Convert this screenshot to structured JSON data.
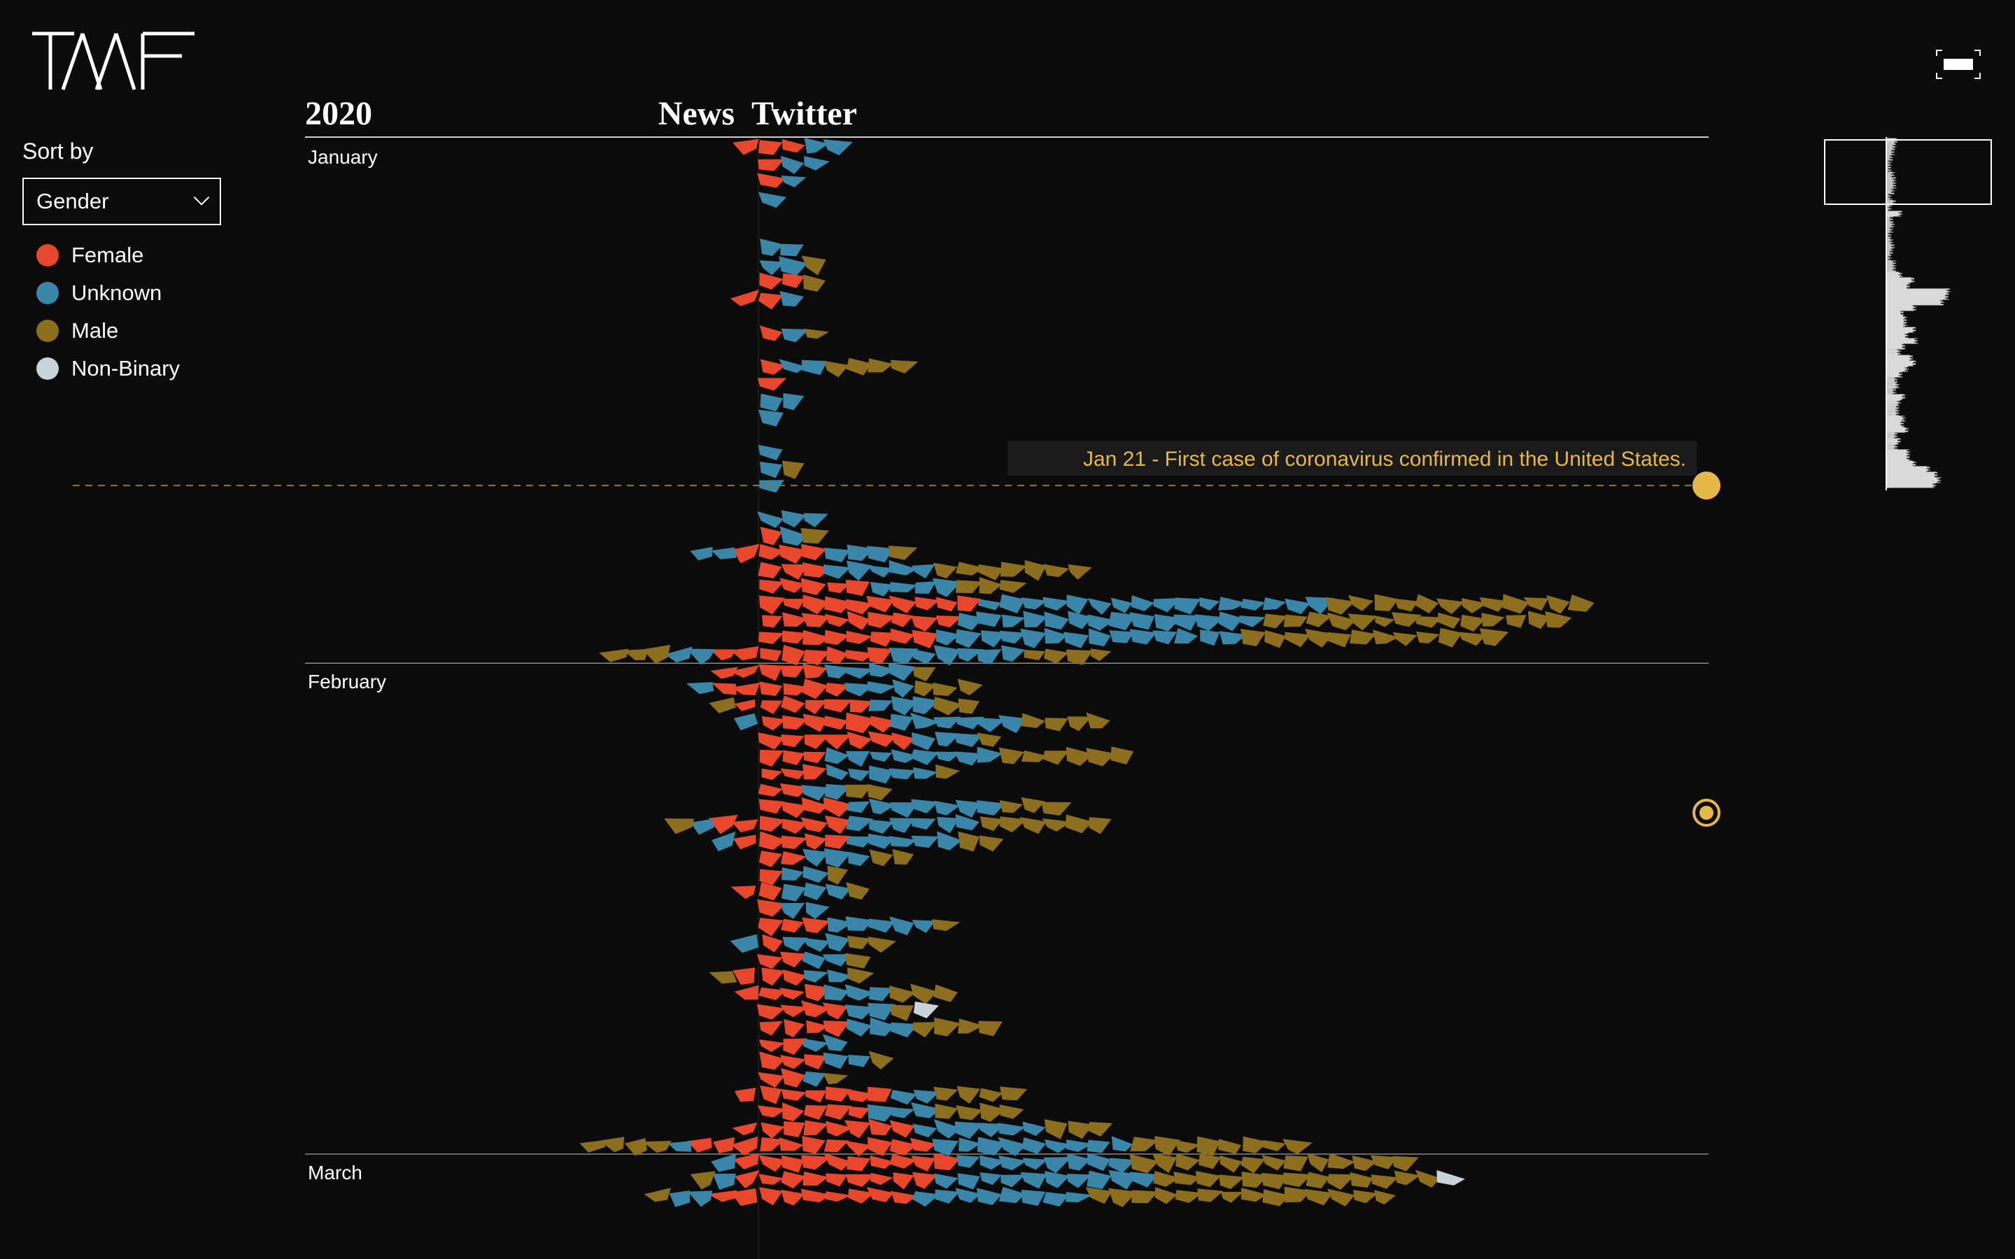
{
  "brand": {
    "logo_text": "TAAF"
  },
  "controls": {
    "sort_label": "Sort by",
    "sort_selected": "Gender"
  },
  "legend": [
    {
      "label": "Female",
      "color": "#e8472c"
    },
    {
      "label": "Unknown",
      "color": "#3a86a8"
    },
    {
      "label": "Male",
      "color": "#8c6e1e"
    },
    {
      "label": "Non-Binary",
      "color": "#c9d3da"
    }
  ],
  "icons": {
    "fullscreen": "fullscreen-exit-icon",
    "event_marker": "circle-marker-icon",
    "event_marker_selected": "ring-marker-icon"
  },
  "chart_data": {
    "type": "stream-timeline",
    "title": "2020",
    "column_headers": [
      "News",
      "Twitter"
    ],
    "months": [
      "January",
      "February",
      "March"
    ],
    "categories": [
      "Female",
      "Unknown",
      "Male",
      "Non-Binary"
    ],
    "colors": [
      "#e8472c",
      "#3a86a8",
      "#8c6e1e",
      "#c9d3da"
    ],
    "annotations": [
      {
        "date": "Jan 21",
        "text": "Jan 21 - First case of coronavirus confirmed in the United States.",
        "color": "#e6b84a"
      }
    ],
    "series": [
      {
        "name": "Twitter",
        "days": [
          {
            "day": "Jan 1",
            "counts": [
              2,
              2,
              0,
              0
            ]
          },
          {
            "day": "Jan 2",
            "counts": [
              1,
              2,
              0,
              0
            ]
          },
          {
            "day": "Jan 3",
            "counts": [
              1,
              1,
              0,
              0
            ]
          },
          {
            "day": "Jan 4",
            "counts": [
              0,
              1,
              0,
              0
            ]
          },
          {
            "day": "Jan 5",
            "counts": [
              0,
              0,
              0,
              0
            ]
          },
          {
            "day": "Jan 6",
            "counts": [
              0,
              0,
              0,
              0
            ]
          },
          {
            "day": "Jan 7",
            "counts": [
              0,
              2,
              0,
              0
            ]
          },
          {
            "day": "Jan 8",
            "counts": [
              0,
              2,
              1,
              0
            ]
          },
          {
            "day": "Jan 9",
            "counts": [
              2,
              0,
              1,
              0
            ]
          },
          {
            "day": "Jan 10",
            "counts": [
              1,
              1,
              0,
              0
            ]
          },
          {
            "day": "Jan 11",
            "counts": [
              0,
              0,
              0,
              0
            ]
          },
          {
            "day": "Jan 12",
            "counts": [
              1,
              1,
              1,
              0
            ]
          },
          {
            "day": "Jan 13",
            "counts": [
              0,
              0,
              0,
              0
            ]
          },
          {
            "day": "Jan 14",
            "counts": [
              1,
              2,
              4,
              0
            ]
          },
          {
            "day": "Jan 15",
            "counts": [
              1,
              0,
              0,
              0
            ]
          },
          {
            "day": "Jan 16",
            "counts": [
              0,
              2,
              0,
              0
            ]
          },
          {
            "day": "Jan 17",
            "counts": [
              0,
              1,
              0,
              0
            ]
          },
          {
            "day": "Jan 18",
            "counts": [
              0,
              0,
              0,
              0
            ]
          },
          {
            "day": "Jan 19",
            "counts": [
              0,
              1,
              0,
              0
            ]
          },
          {
            "day": "Jan 20",
            "counts": [
              0,
              1,
              1,
              0
            ]
          },
          {
            "day": "Jan 21",
            "counts": [
              0,
              1,
              0,
              0
            ]
          },
          {
            "day": "Jan 22",
            "counts": [
              0,
              0,
              0,
              0
            ]
          },
          {
            "day": "Jan 23",
            "counts": [
              0,
              3,
              0,
              0
            ]
          },
          {
            "day": "Jan 24",
            "counts": [
              1,
              1,
              1,
              0
            ]
          },
          {
            "day": "Jan 25",
            "counts": [
              3,
              3,
              1,
              0
            ]
          },
          {
            "day": "Jan 26",
            "counts": [
              3,
              5,
              7,
              0
            ]
          },
          {
            "day": "Jan 27",
            "counts": [
              5,
              4,
              3,
              0
            ]
          },
          {
            "day": "Jan 28",
            "counts": [
              10,
              16,
              12,
              0
            ]
          },
          {
            "day": "Jan 29",
            "counts": [
              9,
              14,
              14,
              0
            ]
          },
          {
            "day": "Jan 30",
            "counts": [
              8,
              14,
              12,
              0
            ]
          },
          {
            "day": "Jan 31",
            "counts": [
              6,
              6,
              4,
              0
            ]
          },
          {
            "day": "Feb 1",
            "counts": [
              3,
              4,
              1,
              0
            ]
          },
          {
            "day": "Feb 2",
            "counts": [
              4,
              3,
              3,
              0
            ]
          },
          {
            "day": "Feb 3",
            "counts": [
              5,
              3,
              2,
              0
            ]
          },
          {
            "day": "Feb 4",
            "counts": [
              6,
              6,
              4,
              0
            ]
          },
          {
            "day": "Feb 5",
            "counts": [
              7,
              3,
              1,
              0
            ]
          },
          {
            "day": "Feb 6",
            "counts": [
              3,
              8,
              6,
              0
            ]
          },
          {
            "day": "Feb 7",
            "counts": [
              3,
              5,
              1,
              0
            ]
          },
          {
            "day": "Feb 8",
            "counts": [
              2,
              2,
              2,
              0
            ]
          },
          {
            "day": "Feb 9",
            "counts": [
              4,
              7,
              3,
              0
            ]
          },
          {
            "day": "Feb 10",
            "counts": [
              4,
              6,
              6,
              0
            ]
          },
          {
            "day": "Feb 11",
            "counts": [
              4,
              5,
              2,
              0
            ]
          },
          {
            "day": "Feb 12",
            "counts": [
              2,
              3,
              2,
              0
            ]
          },
          {
            "day": "Feb 13",
            "counts": [
              1,
              2,
              1,
              0
            ]
          },
          {
            "day": "Feb 14",
            "counts": [
              1,
              3,
              1,
              0
            ]
          },
          {
            "day": "Feb 15",
            "counts": [
              1,
              2,
              0,
              0
            ]
          },
          {
            "day": "Feb 16",
            "counts": [
              3,
              5,
              1,
              0
            ]
          },
          {
            "day": "Feb 17",
            "counts": [
              1,
              3,
              2,
              0
            ]
          },
          {
            "day": "Feb 18",
            "counts": [
              2,
              2,
              1,
              0
            ]
          },
          {
            "day": "Feb 19",
            "counts": [
              2,
              2,
              1,
              0
            ]
          },
          {
            "day": "Feb 20",
            "counts": [
              3,
              3,
              3,
              0
            ]
          },
          {
            "day": "Feb 21",
            "counts": [
              4,
              2,
              1,
              1
            ]
          },
          {
            "day": "Feb 22",
            "counts": [
              4,
              3,
              4,
              0
            ]
          },
          {
            "day": "Feb 23",
            "counts": [
              2,
              2,
              0,
              0
            ]
          },
          {
            "day": "Feb 24",
            "counts": [
              3,
              2,
              1,
              0
            ]
          },
          {
            "day": "Feb 25",
            "counts": [
              2,
              1,
              1,
              0
            ]
          },
          {
            "day": "Feb 26",
            "counts": [
              6,
              2,
              4,
              0
            ]
          },
          {
            "day": "Feb 27",
            "counts": [
              5,
              3,
              4,
              0
            ]
          },
          {
            "day": "Feb 28",
            "counts": [
              7,
              6,
              3,
              0
            ]
          },
          {
            "day": "Feb 29",
            "counts": [
              8,
              9,
              8,
              0
            ]
          },
          {
            "day": "Mar 1",
            "counts": [
              9,
              8,
              13,
              0
            ]
          },
          {
            "day": "Mar 2",
            "counts": [
              8,
              10,
              13,
              1
            ]
          },
          {
            "day": "Mar 3",
            "counts": [
              7,
              8,
              14,
              0
            ]
          }
        ]
      },
      {
        "name": "News",
        "days": [
          {
            "day": "Jan 1",
            "counts": [
              1,
              0,
              0,
              0
            ]
          },
          {
            "day": "Jan 10",
            "counts": [
              1,
              0,
              0,
              0
            ]
          },
          {
            "day": "Jan 25",
            "counts": [
              1,
              2,
              0,
              0
            ]
          },
          {
            "day": "Jan 31",
            "counts": [
              2,
              2,
              3,
              0
            ]
          },
          {
            "day": "Feb 1",
            "counts": [
              2,
              0,
              0,
              0
            ]
          },
          {
            "day": "Feb 2",
            "counts": [
              2,
              1,
              0,
              0
            ]
          },
          {
            "day": "Feb 3",
            "counts": [
              1,
              0,
              1,
              0
            ]
          },
          {
            "day": "Feb 4",
            "counts": [
              0,
              1,
              0,
              0
            ]
          },
          {
            "day": "Feb 10",
            "counts": [
              2,
              1,
              1,
              0
            ]
          },
          {
            "day": "Feb 11",
            "counts": [
              1,
              1,
              0,
              0
            ]
          },
          {
            "day": "Feb 14",
            "counts": [
              1,
              0,
              0,
              0
            ]
          },
          {
            "day": "Feb 17",
            "counts": [
              0,
              1,
              0,
              0
            ]
          },
          {
            "day": "Feb 19",
            "counts": [
              1,
              0,
              1,
              0
            ]
          },
          {
            "day": "Feb 20",
            "counts": [
              1,
              0,
              0,
              0
            ]
          },
          {
            "day": "Feb 26",
            "counts": [
              1,
              0,
              0,
              0
            ]
          },
          {
            "day": "Feb 28",
            "counts": [
              1,
              0,
              0,
              0
            ]
          },
          {
            "day": "Feb 29",
            "counts": [
              3,
              1,
              4,
              0
            ]
          },
          {
            "day": "Mar 1",
            "counts": [
              1,
              1,
              0,
              0
            ]
          },
          {
            "day": "Mar 2",
            "counts": [
              1,
              1,
              1,
              0
            ]
          },
          {
            "day": "Mar 3",
            "counts": [
              2,
              2,
              1,
              0
            ]
          }
        ]
      }
    ]
  }
}
